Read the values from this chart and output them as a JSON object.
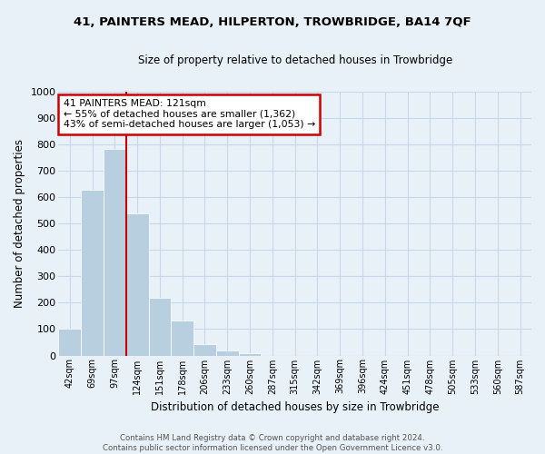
{
  "title1": "41, PAINTERS MEAD, HILPERTON, TROWBRIDGE, BA14 7QF",
  "title2": "Size of property relative to detached houses in Trowbridge",
  "xlabel": "Distribution of detached houses by size in Trowbridge",
  "ylabel": "Number of detached properties",
  "footnote": "Contains HM Land Registry data © Crown copyright and database right 2024.\nContains public sector information licensed under the Open Government Licence v3.0.",
  "bin_labels": [
    "42sqm",
    "69sqm",
    "97sqm",
    "124sqm",
    "151sqm",
    "178sqm",
    "206sqm",
    "233sqm",
    "260sqm",
    "287sqm",
    "315sqm",
    "342sqm",
    "369sqm",
    "396sqm",
    "424sqm",
    "451sqm",
    "478sqm",
    "505sqm",
    "533sqm",
    "560sqm",
    "587sqm"
  ],
  "bar_values": [
    102,
    627,
    783,
    538,
    220,
    133,
    42,
    18,
    10,
    0,
    0,
    0,
    0,
    0,
    0,
    0,
    0,
    0,
    0,
    0,
    0
  ],
  "bar_color": "#b8cfe0",
  "bar_edge_color": "#ffffff",
  "grid_color": "#c8d8ea",
  "bg_color": "#e8f0f8",
  "vline_color": "#cc0000",
  "annotation_text": "41 PAINTERS MEAD: 121sqm\n← 55% of detached houses are smaller (1,362)\n43% of semi-detached houses are larger (1,053) →",
  "annotation_box_color": "#ffffff",
  "annotation_box_edge": "#cc0000",
  "ylim": [
    0,
    1000
  ],
  "yticks": [
    0,
    100,
    200,
    300,
    400,
    500,
    600,
    700,
    800,
    900,
    1000
  ],
  "vline_pos": 2.5
}
